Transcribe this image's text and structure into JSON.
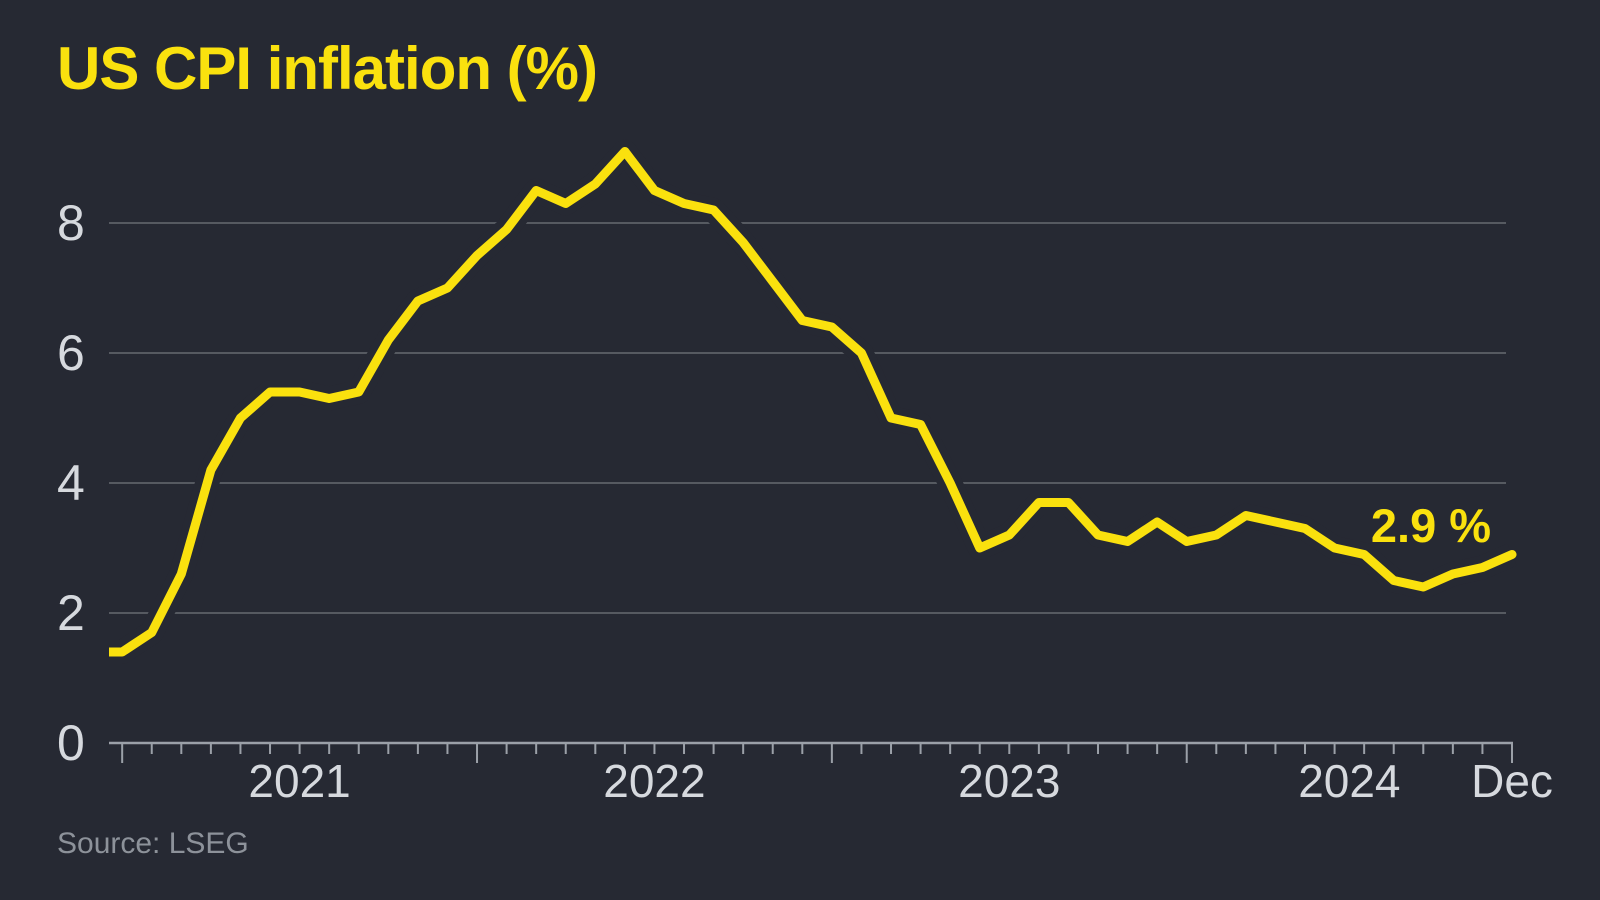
{
  "title": "US CPI inflation (%)",
  "annotation": "2.9 %",
  "source": "Source: LSEG",
  "colors": {
    "background": "#262933",
    "accent_yellow": "#fae10e",
    "grid": "#565a61",
    "axis": "#9ba0a8",
    "tick_label": "#d6d9de",
    "source_text": "#8d929a"
  },
  "chart_data": {
    "type": "line",
    "title": "US CPI inflation (%)",
    "ylabel": "",
    "xlabel": "",
    "ylim": [
      0,
      9.6
    ],
    "grid": "horizontal",
    "legend": "none",
    "y_ticks": [
      0,
      2,
      4,
      6,
      8
    ],
    "x_tick_labels": [
      "2021",
      "2022",
      "2023",
      "2024",
      "Dec"
    ],
    "x": [
      "Dec 2020",
      "Jan 2021",
      "Feb 2021",
      "Mar 2021",
      "Apr 2021",
      "May 2021",
      "Jun 2021",
      "Jul 2021",
      "Aug 2021",
      "Sep 2021",
      "Oct 2021",
      "Nov 2021",
      "Dec 2021",
      "Jan 2022",
      "Feb 2022",
      "Mar 2022",
      "Apr 2022",
      "May 2022",
      "Jun 2022",
      "Jul 2022",
      "Aug 2022",
      "Sep 2022",
      "Oct 2022",
      "Nov 2022",
      "Dec 2022",
      "Jan 2023",
      "Feb 2023",
      "Mar 2023",
      "Apr 2023",
      "May 2023",
      "Jun 2023",
      "Jul 2023",
      "Aug 2023",
      "Sep 2023",
      "Oct 2023",
      "Nov 2023",
      "Dec 2023",
      "Jan 2024",
      "Feb 2024",
      "Mar 2024",
      "Apr 2024",
      "May 2024",
      "Jun 2024",
      "Jul 2024",
      "Aug 2024",
      "Sep 2024",
      "Oct 2024",
      "Nov 2024",
      "Dec 2024"
    ],
    "series": [
      {
        "name": "US CPI inflation (%)",
        "values": [
          1.4,
          1.4,
          1.7,
          2.6,
          4.2,
          5.0,
          5.4,
          5.4,
          5.3,
          5.4,
          6.2,
          6.8,
          7.0,
          7.5,
          7.9,
          8.5,
          8.3,
          8.6,
          9.1,
          8.5,
          8.3,
          8.2,
          7.7,
          7.1,
          6.5,
          6.4,
          6.0,
          5.0,
          4.9,
          4.0,
          3.0,
          3.2,
          3.7,
          3.7,
          3.2,
          3.1,
          3.4,
          3.1,
          3.2,
          3.5,
          3.4,
          3.3,
          3.0,
          2.9,
          2.5,
          2.4,
          2.6,
          2.7,
          2.9
        ]
      }
    ],
    "annotation": {
      "text": "2.9 %",
      "month": "Dec 2024",
      "value": 2.9
    }
  }
}
